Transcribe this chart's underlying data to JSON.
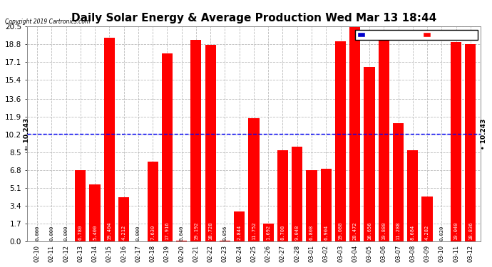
{
  "title": "Daily Solar Energy & Average Production Wed Mar 13 18:44",
  "copyright": "Copyright 2019 Cartronics.com",
  "categories": [
    "02-10",
    "02-11",
    "02-12",
    "02-13",
    "02-14",
    "02-15",
    "02-16",
    "02-17",
    "02-18",
    "02-19",
    "02-20",
    "02-21",
    "02-22",
    "02-23",
    "02-24",
    "02-25",
    "02-26",
    "02-27",
    "02-28",
    "03-01",
    "03-02",
    "03-03",
    "03-04",
    "03-05",
    "03-06",
    "03-07",
    "03-08",
    "03-09",
    "03-10",
    "03-11",
    "03-12"
  ],
  "values": [
    0.0,
    0.0,
    0.0,
    6.78,
    5.4,
    19.404,
    4.212,
    0.0,
    7.63,
    17.916,
    0.04,
    19.192,
    18.728,
    0.056,
    2.844,
    11.752,
    1.692,
    8.708,
    9.048,
    6.808,
    6.904,
    19.08,
    20.472,
    16.656,
    19.88,
    11.288,
    8.684,
    4.282,
    0.02,
    19.04,
    18.836
  ],
  "average": 10.243,
  "bar_color": "#FF0000",
  "average_line_color": "#0000FF",
  "ylim": [
    0.0,
    20.5
  ],
  "yticks": [
    0.0,
    1.7,
    3.4,
    5.1,
    6.8,
    8.5,
    10.2,
    11.9,
    13.6,
    15.4,
    17.1,
    18.8,
    20.5
  ],
  "grid_color": "#BBBBBB",
  "background_color": "#FFFFFF",
  "title_fontsize": 11,
  "bar_width": 0.75,
  "legend_avg_color": "#0000CC",
  "legend_daily_color": "#FF0000",
  "avg_label": "← 10.243",
  "avg_label_right": "• 10.243"
}
